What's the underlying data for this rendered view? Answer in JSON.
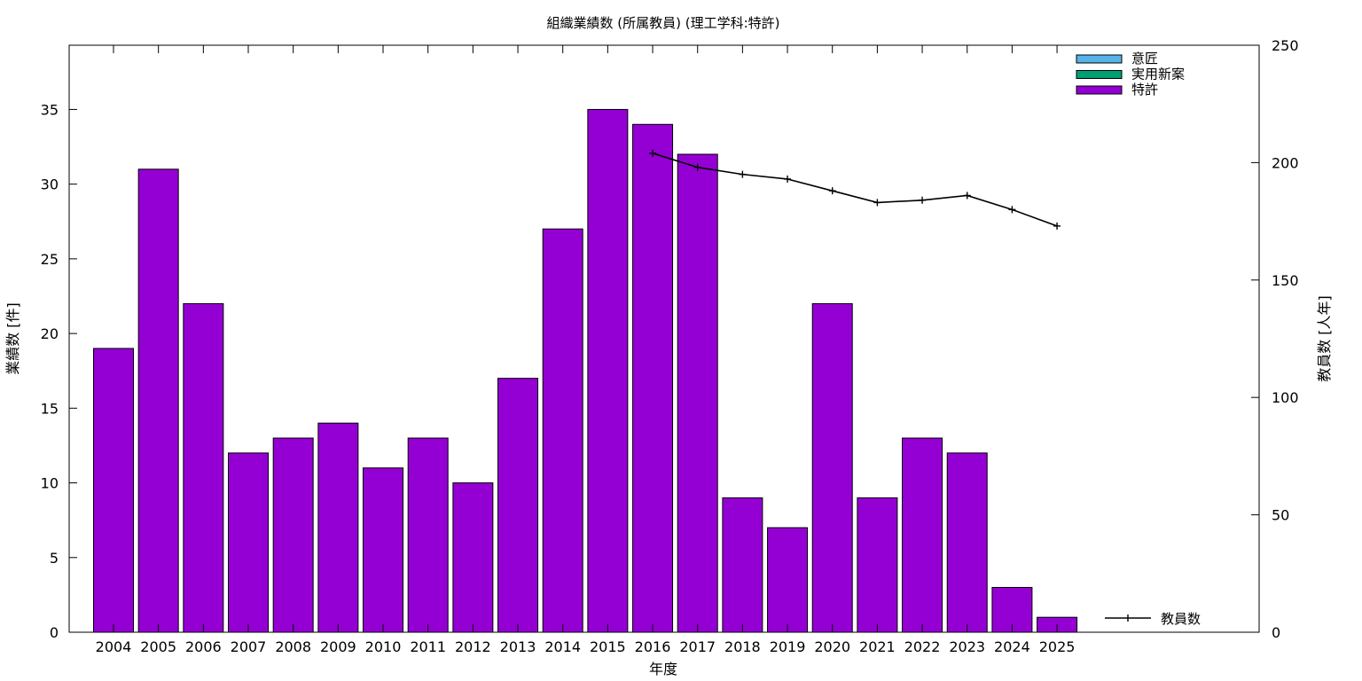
{
  "chart_data": {
    "type": "bar",
    "title": "組織業績数 (所属教員) (理工学科:特許)",
    "xlabel": "年度",
    "ylabel": "業績数 [件]",
    "y2label": "教員数 [人年]",
    "categories": [
      "2004",
      "2005",
      "2006",
      "2007",
      "2008",
      "2009",
      "2010",
      "2011",
      "2012",
      "2013",
      "2014",
      "2015",
      "2016",
      "2017",
      "2018",
      "2019",
      "2020",
      "2021",
      "2022",
      "2023",
      "2024",
      "2025"
    ],
    "series": [
      {
        "name": "意匠",
        "color": "#56b4e9",
        "values": [
          0,
          0,
          0,
          0,
          0,
          0,
          0,
          0,
          0,
          0,
          0,
          0,
          0,
          0,
          0,
          0,
          0,
          0,
          0,
          0,
          0,
          0
        ]
      },
      {
        "name": "実用新案",
        "color": "#009e73",
        "values": [
          0,
          0,
          0,
          0,
          0,
          0,
          0,
          0,
          0,
          0,
          0,
          0,
          0,
          0,
          0,
          0,
          0,
          0,
          0,
          0,
          0,
          0
        ]
      },
      {
        "name": "特許",
        "color": "#9400d3",
        "values": [
          19,
          31,
          22,
          12,
          13,
          14,
          11,
          13,
          10,
          17,
          27,
          35,
          34,
          32,
          9,
          7,
          22,
          9,
          13,
          12,
          3,
          1
        ]
      }
    ],
    "line_series": {
      "name": "教員数",
      "color": "#000000",
      "x": [
        "2016",
        "2017",
        "2018",
        "2019",
        "2020",
        "2021",
        "2022",
        "2023",
        "2024",
        "2025"
      ],
      "values": [
        204,
        198,
        195,
        193,
        188,
        183,
        184,
        186,
        180,
        173
      ]
    },
    "ylim": [
      0,
      39.3
    ],
    "y_ticks": [
      0,
      5,
      10,
      15,
      20,
      25,
      30,
      35
    ],
    "y2lim": [
      0,
      250
    ],
    "y2_ticks": [
      0,
      50,
      100,
      150,
      200,
      250
    ],
    "legend_position": "top-right",
    "line_legend_position": "bottom-right"
  }
}
